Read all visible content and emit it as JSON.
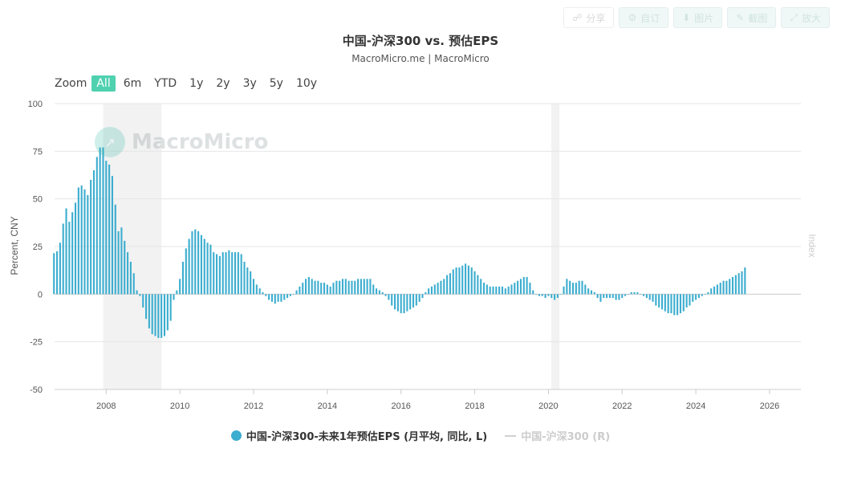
{
  "toolbar": {
    "share_label": "分享",
    "subscribe_label": "自订",
    "image_label": "图片",
    "screenshot_label": "截图",
    "expand_label": "放大"
  },
  "header": {
    "title": "中国-沪深300 vs. 预估EPS",
    "subtitle": "MacroMicro.me | MacroMicro"
  },
  "zoom": {
    "label": "Zoom",
    "options": [
      "All",
      "6m",
      "YTD",
      "1y",
      "2y",
      "3y",
      "5y",
      "10y"
    ],
    "active": "All"
  },
  "watermark": {
    "text": "MacroMicro"
  },
  "legend": {
    "series1": "中国-沪深300-未来1年预估EPS (月平均, 同比, L)",
    "series2": "中国-沪深300 (R)"
  },
  "colors": {
    "bar": "#3cadcf",
    "recession": "#f2f2f2",
    "grid": "#e6e6e6"
  },
  "chart_data": {
    "type": "bar",
    "title": "中国-沪深300 vs. 预估EPS",
    "ylabel": "Percent, CNY",
    "ylabel_right": "Index",
    "ylim": [
      -50,
      100
    ],
    "yticks": [
      -50,
      -25,
      0,
      25,
      50,
      75,
      100
    ],
    "xlim": [
      2006.6,
      2026.85
    ],
    "xticks": [
      2008,
      2010,
      2012,
      2014,
      2016,
      2018,
      2020,
      2022,
      2024,
      2026
    ],
    "shaded_periods": [
      [
        2007.92,
        2009.5
      ],
      [
        2020.08,
        2020.3
      ]
    ],
    "series": [
      {
        "name": "中国-沪深300-未来1年预估EPS (月平均, 同比, L)",
        "start": "2006-08",
        "frequency": "monthly",
        "values": [
          21.5,
          22.5,
          27,
          37,
          45,
          38,
          43,
          48,
          56,
          57,
          55,
          52,
          60,
          65,
          72,
          77,
          77,
          70,
          68,
          62,
          47,
          33,
          35,
          28,
          22,
          17,
          11,
          2,
          -1,
          -7,
          -13,
          -18,
          -21,
          -22,
          -23,
          -23,
          -22,
          -19,
          -14,
          -3,
          2,
          8,
          17,
          24,
          29,
          33,
          34,
          33,
          31,
          29,
          27,
          26,
          22,
          21,
          20,
          22,
          22,
          23,
          22,
          22,
          22,
          21,
          17,
          14,
          12,
          8,
          5,
          3,
          1,
          -1,
          -3,
          -4,
          -5,
          -4,
          -4,
          -3,
          -2,
          -1,
          0,
          2,
          4,
          6,
          8,
          9,
          8,
          7,
          7,
          6,
          6,
          5,
          4,
          6,
          7,
          7,
          8,
          8,
          7,
          7,
          7,
          8,
          8,
          8,
          8,
          8,
          5,
          3,
          2,
          1,
          -1,
          -3,
          -6,
          -8,
          -9,
          -10,
          -10,
          -9,
          -8,
          -7,
          -6,
          -4,
          -2,
          1,
          3,
          4,
          5,
          6,
          7,
          8,
          10,
          11,
          13,
          14,
          14,
          15,
          16,
          15,
          14,
          12,
          10,
          8,
          6,
          5,
          4,
          4,
          4,
          4,
          4,
          3,
          4,
          5,
          6,
          7,
          8,
          9,
          9,
          6,
          2,
          0,
          -1,
          -1,
          -2,
          -1,
          -2,
          -3,
          -2,
          0,
          4,
          8,
          7,
          6,
          6,
          7,
          7,
          5,
          3,
          2,
          1,
          -2,
          -4,
          -2,
          -2,
          -2,
          -2,
          -3,
          -3,
          -2,
          -1,
          0,
          1,
          1,
          1,
          0,
          -1,
          -2,
          -3,
          -4,
          -6,
          -7,
          -8,
          -9,
          -10,
          -10,
          -11,
          -11,
          -10,
          -9,
          -7,
          -6,
          -4,
          -3,
          -2,
          -1,
          0,
          1,
          3,
          4,
          5,
          6,
          7,
          7,
          8,
          9,
          10,
          11,
          12,
          14
        ]
      }
    ]
  }
}
